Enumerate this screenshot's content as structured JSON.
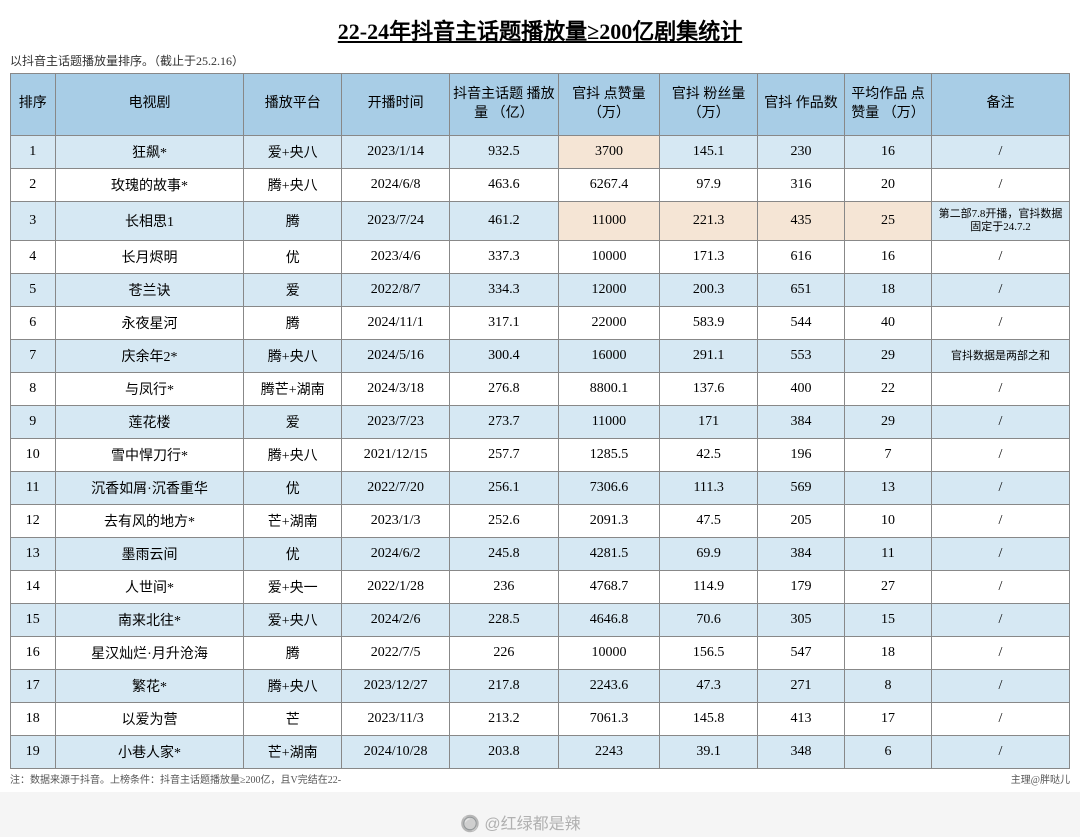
{
  "title": "22-24年抖音主话题播放量≥200亿剧集统计",
  "subtitle": "以抖音主话题播放量排序。（截止于25.2.16）",
  "columns": [
    "排序",
    "电视剧",
    "播放平台",
    "开播时间",
    "抖音主话题\n播放量\n（亿）",
    "官抖\n点赞量\n（万）",
    "官抖\n粉丝量\n（万）",
    "官抖\n作品数",
    "平均作品\n点赞量\n（万）",
    "备注"
  ],
  "rows": [
    {
      "rank": "1",
      "drama": "狂飙*",
      "platform": "爱+央八",
      "date": "2023/1/14",
      "play": "932.5",
      "like": "3700",
      "fans": "145.1",
      "works": "230",
      "avg": "16",
      "note": "/",
      "hl": [
        "like"
      ]
    },
    {
      "rank": "2",
      "drama": "玫瑰的故事*",
      "platform": "腾+央八",
      "date": "2024/6/8",
      "play": "463.6",
      "like": "6267.4",
      "fans": "97.9",
      "works": "316",
      "avg": "20",
      "note": "/"
    },
    {
      "rank": "3",
      "drama": "长相思1",
      "platform": "腾",
      "date": "2023/7/24",
      "play": "461.2",
      "like": "11000",
      "fans": "221.3",
      "works": "435",
      "avg": "25",
      "note": "第二部7.8开播，官抖数据固定于24.7.2",
      "hl": [
        "like",
        "fans",
        "works",
        "avg"
      ],
      "noteSmall": true
    },
    {
      "rank": "4",
      "drama": "长月烬明",
      "platform": "优",
      "date": "2023/4/6",
      "play": "337.3",
      "like": "10000",
      "fans": "171.3",
      "works": "616",
      "avg": "16",
      "note": "/"
    },
    {
      "rank": "5",
      "drama": "苍兰诀",
      "platform": "爱",
      "date": "2022/8/7",
      "play": "334.3",
      "like": "12000",
      "fans": "200.3",
      "works": "651",
      "avg": "18",
      "note": "/"
    },
    {
      "rank": "6",
      "drama": "永夜星河",
      "platform": "腾",
      "date": "2024/11/1",
      "play": "317.1",
      "like": "22000",
      "fans": "583.9",
      "works": "544",
      "avg": "40",
      "note": "/"
    },
    {
      "rank": "7",
      "drama": "庆余年2*",
      "platform": "腾+央八",
      "date": "2024/5/16",
      "play": "300.4",
      "like": "16000",
      "fans": "291.1",
      "works": "553",
      "avg": "29",
      "note": "官抖数据是两部之和",
      "noteSmall": true
    },
    {
      "rank": "8",
      "drama": "与凤行*",
      "platform": "腾芒+湖南",
      "date": "2024/3/18",
      "play": "276.8",
      "like": "8800.1",
      "fans": "137.6",
      "works": "400",
      "avg": "22",
      "note": "/"
    },
    {
      "rank": "9",
      "drama": "莲花楼",
      "platform": "爱",
      "date": "2023/7/23",
      "play": "273.7",
      "like": "11000",
      "fans": "171",
      "works": "384",
      "avg": "29",
      "note": "/"
    },
    {
      "rank": "10",
      "drama": "雪中悍刀行*",
      "platform": "腾+央八",
      "date": "2021/12/15",
      "play": "257.7",
      "like": "1285.5",
      "fans": "42.5",
      "works": "196",
      "avg": "7",
      "note": "/"
    },
    {
      "rank": "11",
      "drama": "沉香如屑·沉香重华",
      "platform": "优",
      "date": "2022/7/20",
      "play": "256.1",
      "like": "7306.6",
      "fans": "111.3",
      "works": "569",
      "avg": "13",
      "note": "/"
    },
    {
      "rank": "12",
      "drama": "去有风的地方*",
      "platform": "芒+湖南",
      "date": "2023/1/3",
      "play": "252.6",
      "like": "2091.3",
      "fans": "47.5",
      "works": "205",
      "avg": "10",
      "note": "/"
    },
    {
      "rank": "13",
      "drama": "墨雨云间",
      "platform": "优",
      "date": "2024/6/2",
      "play": "245.8",
      "like": "4281.5",
      "fans": "69.9",
      "works": "384",
      "avg": "11",
      "note": "/"
    },
    {
      "rank": "14",
      "drama": "人世间*",
      "platform": "爱+央一",
      "date": "2022/1/28",
      "play": "236",
      "like": "4768.7",
      "fans": "114.9",
      "works": "179",
      "avg": "27",
      "note": "/"
    },
    {
      "rank": "15",
      "drama": "南来北往*",
      "platform": "爱+央八",
      "date": "2024/2/6",
      "play": "228.5",
      "like": "4646.8",
      "fans": "70.6",
      "works": "305",
      "avg": "15",
      "note": "/"
    },
    {
      "rank": "16",
      "drama": "星汉灿烂·月升沧海",
      "platform": "腾",
      "date": "2022/7/5",
      "play": "226",
      "like": "10000",
      "fans": "156.5",
      "works": "547",
      "avg": "18",
      "note": "/"
    },
    {
      "rank": "17",
      "drama": "繁花*",
      "platform": "腾+央八",
      "date": "2023/12/27",
      "play": "217.8",
      "like": "2243.6",
      "fans": "47.3",
      "works": "271",
      "avg": "8",
      "note": "/"
    },
    {
      "rank": "18",
      "drama": "以爱为营",
      "platform": "芒",
      "date": "2023/11/3",
      "play": "213.2",
      "like": "7061.3",
      "fans": "145.8",
      "works": "413",
      "avg": "17",
      "note": "/"
    },
    {
      "rank": "19",
      "drama": "小巷人家*",
      "platform": "芒+湖南",
      "date": "2024/10/28",
      "play": "203.8",
      "like": "2243",
      "fans": "39.1",
      "works": "348",
      "avg": "6",
      "note": "/"
    }
  ],
  "footerLeft": "注：数据来源于抖音。上榜条件：抖音主话题播放量≥200亿，且V完结在22-",
  "footerRight": "主理@胖哒儿",
  "watermark": "🔘 @红绿都是辣"
}
